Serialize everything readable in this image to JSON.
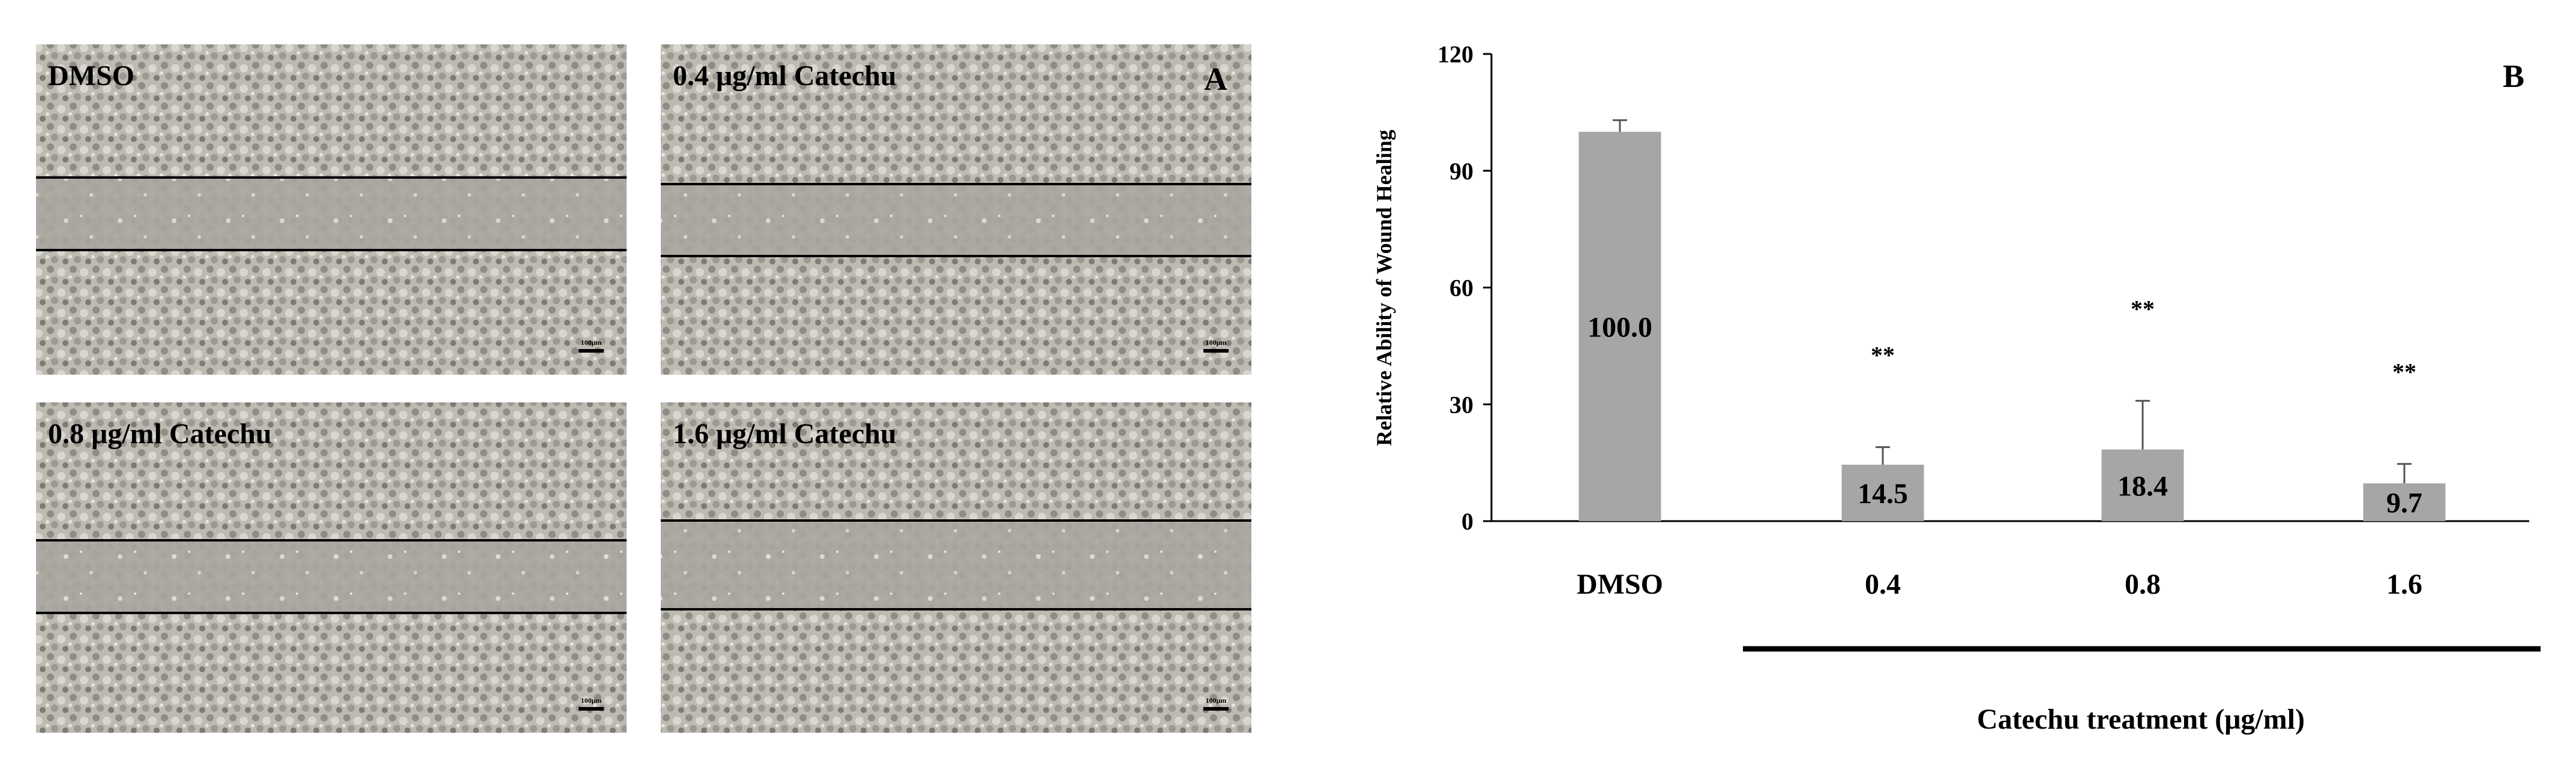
{
  "panel_a": {
    "label": "A",
    "images": [
      {
        "label": "DMSO",
        "scale_bar": "100μm"
      },
      {
        "label": "0.4 μg/ml Catechu",
        "scale_bar": "100μm"
      },
      {
        "label": "0.8 μg/ml Catechu",
        "scale_bar": "100μm"
      },
      {
        "label": "1.6 μg/ml Catechu",
        "scale_bar": "100μm"
      }
    ]
  },
  "chart_data": {
    "type": "bar",
    "panel_label": "B",
    "y_label": "Relative Ability of Wound Healing",
    "x_label": "Catechu treatment  (μg/ml)",
    "categories": [
      "DMSO",
      "0.4",
      "0.8",
      "1.6"
    ],
    "values": [
      100.0,
      14.5,
      18.4,
      9.7
    ],
    "value_labels": [
      "100.0",
      "14.5",
      "18.4",
      "9.7"
    ],
    "errors": [
      3,
      4.5,
      12.5,
      5
    ],
    "significance": [
      null,
      "**",
      "**",
      "**"
    ],
    "color": "#a6a6a6",
    "ylim": [
      0,
      120
    ],
    "yticks": [
      0,
      30,
      60,
      90,
      120
    ]
  }
}
